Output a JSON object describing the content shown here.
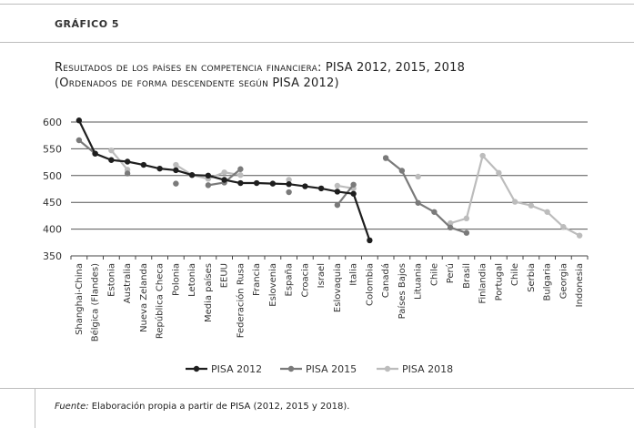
{
  "header": {
    "figure_label": "GRÁFICO 5",
    "title_line1": "Resultados de los países en competencia financiera: PISA 2012, 2015, 2018",
    "title_line2": "(Ordenados de forma descendente según PISA 2012)"
  },
  "footer": {
    "source_label": "Fuente:",
    "source_text": " Elaboración propia a partir de PISA (2012, 2015 y 2018)."
  },
  "chart_data": {
    "type": "line",
    "title": "",
    "xlabel": "",
    "ylabel": "",
    "ylim": [
      350,
      600
    ],
    "yticks": [
      350,
      400,
      450,
      500,
      550,
      600
    ],
    "grid": true,
    "legend_position": "bottom",
    "categories": [
      "Shanghai-China",
      "Bélgica (Flandes)",
      "Estonia",
      "Australia",
      "Nueva Zelanda",
      "República Checa",
      "Polonia",
      "Letonia",
      "Media países",
      "EEUU",
      "Federación Rusa",
      "Francia",
      "Eslovenia",
      "España",
      "Croacia",
      "Israel",
      "Eslovaquia",
      "Italia",
      "Colombia",
      "Canadá",
      "Países Bajos",
      "Lituania",
      "Chile",
      "Perú",
      "Brasil",
      "Finlandia",
      "Portugal",
      "Chile",
      "Serbia",
      "Bulgaria",
      "Georgia",
      "Indonesia"
    ],
    "series": [
      {
        "name": "PISA 2012",
        "color": "#1e1e1e",
        "values": [
          603,
          541,
          529,
          526,
          520,
          513,
          510,
          501,
          500,
          492,
          486,
          486,
          485,
          484,
          480,
          476,
          470,
          466,
          379,
          null,
          null,
          null,
          null,
          null,
          null,
          null,
          null,
          null,
          null,
          null,
          null,
          null
        ]
      },
      {
        "name": "PISA 2015",
        "color": "#7a7a7a",
        "values": [
          566,
          541,
          null,
          504,
          null,
          null,
          485,
          null,
          482,
          487,
          512,
          null,
          null,
          469,
          null,
          null,
          445,
          483,
          null,
          533,
          509,
          449,
          432,
          403,
          393,
          null,
          null,
          null,
          null,
          null,
          null,
          null
        ]
      },
      {
        "name": "PISA 2018",
        "color": "#bcbcbc",
        "values": [
          null,
          null,
          547,
          511,
          null,
          null,
          520,
          501,
          494,
          506,
          501,
          null,
          null,
          492,
          null,
          null,
          481,
          476,
          null,
          532,
          null,
          498,
          null,
          411,
          420,
          537,
          505,
          451,
          444,
          432,
          404,
          388
        ]
      }
    ]
  }
}
